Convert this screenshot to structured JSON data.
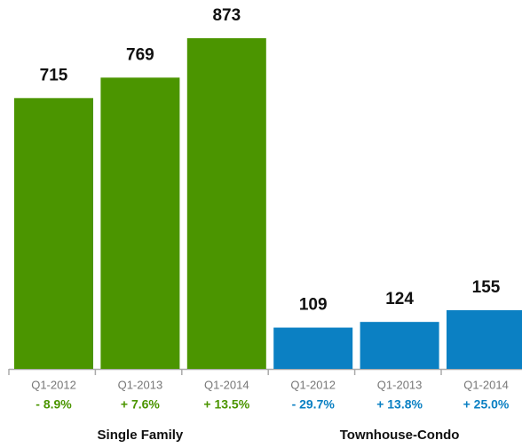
{
  "chart_data": {
    "type": "bar",
    "groups": [
      {
        "name": "Single Family",
        "color": "#4b9500",
        "categories": [
          "Q1-2012",
          "Q1-2013",
          "Q1-2014"
        ],
        "values": [
          715,
          769,
          873
        ],
        "change_labels": [
          "- 8.9%",
          "+ 7.6%",
          "+ 13.5%"
        ]
      },
      {
        "name": "Townhouse-Condo",
        "color": "#0b80c3",
        "categories": [
          "Q1-2012",
          "Q1-2013",
          "Q1-2014"
        ],
        "values": [
          109,
          124,
          155
        ],
        "change_labels": [
          "- 29.7%",
          "+ 13.8%",
          "+ 25.0%"
        ]
      }
    ]
  }
}
